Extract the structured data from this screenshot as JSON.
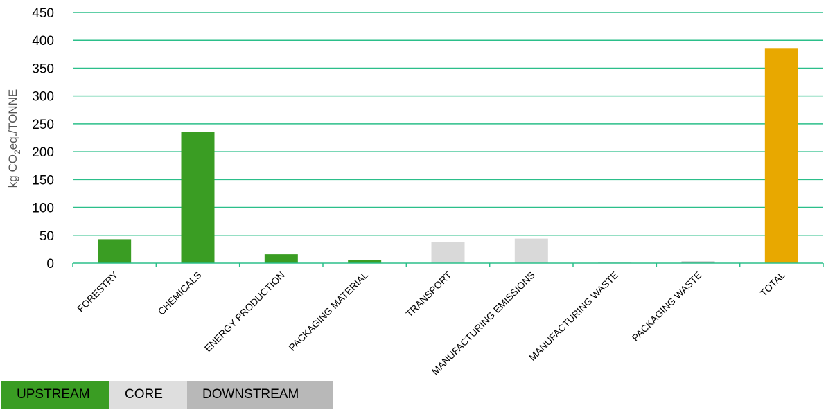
{
  "chart_data": {
    "type": "bar",
    "title": "",
    "ylabel": "kg CO2eq./TONNE",
    "ylabel_parts": {
      "pre": "kg CO",
      "sub": "2",
      "post": "eq./TONNE"
    },
    "xlabel": "",
    "ylim": [
      0,
      450
    ],
    "yticks": [
      0,
      50,
      100,
      150,
      200,
      250,
      300,
      350,
      400,
      450
    ],
    "grid": true,
    "gridline_color": "#2bbf8a",
    "categories": [
      "FORESTRY",
      "CHEMICALS",
      "ENERGY PRODUCTION",
      "PACKAGING MATERIAL",
      "TRANSPORT",
      "MANUFACTURING EMISSIONS",
      "MANUFACTURING WASTE",
      "PACKAGING WASTE",
      "TOTAL"
    ],
    "values": [
      43,
      235,
      16,
      6,
      38,
      44,
      2,
      3,
      385
    ],
    "bar_colors": [
      "#3a9d23",
      "#3a9d23",
      "#3a9d23",
      "#3a9d23",
      "#d9d9d9",
      "#d9d9d9",
      "#d9d9d9",
      "#a6a6a6",
      "#e8a800"
    ]
  },
  "legend": {
    "items": [
      {
        "label": "UPSTREAM",
        "bg": "#3a9d23",
        "fg": "#000000"
      },
      {
        "label": "CORE",
        "bg": "#dedede",
        "fg": "#000000"
      },
      {
        "label": "DOWNSTREAM",
        "bg": "#b8b8b8",
        "fg": "#000000"
      }
    ]
  }
}
